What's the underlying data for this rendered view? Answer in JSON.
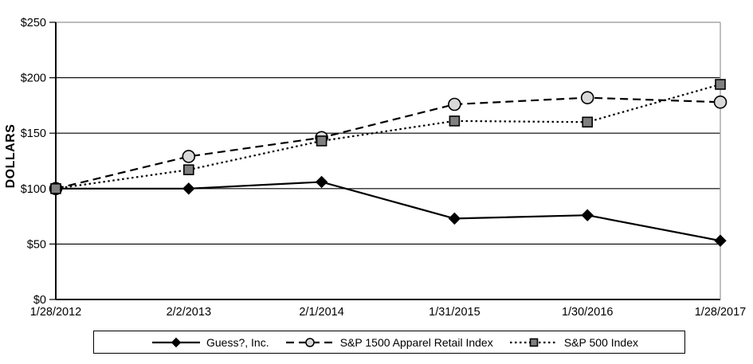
{
  "chart_data": {
    "type": "line",
    "title": "",
    "xlabel": "",
    "ylabel": "DOLLARS",
    "categories": [
      "1/28/2012",
      "2/2/2013",
      "2/1/2014",
      "1/31/2015",
      "1/30/2016",
      "1/28/2017"
    ],
    "ylim": [
      0,
      250
    ],
    "ytick_step": 50,
    "yticklabels": [
      "$0",
      "$50",
      "$100",
      "$150",
      "$200",
      "$250"
    ],
    "grid": "horizontal",
    "legend_position": "bottom",
    "series": [
      {
        "name": "Guess?, Inc.",
        "values": [
          100,
          100,
          106,
          73,
          76,
          53
        ],
        "line_style": "solid",
        "line_color": "#000000",
        "marker": "diamond",
        "marker_fill": "#000000",
        "marker_stroke": "#000000"
      },
      {
        "name": "S&P 1500 Apparel Retail Index",
        "values": [
          100,
          129,
          146,
          176,
          182,
          178
        ],
        "line_style": "dashed",
        "line_color": "#000000",
        "marker": "circle",
        "marker_fill": "#d9d9d9",
        "marker_stroke": "#000000"
      },
      {
        "name": "S&P 500 Index",
        "values": [
          100,
          117,
          143,
          161,
          160,
          194
        ],
        "line_style": "dotted",
        "line_color": "#000000",
        "marker": "square",
        "marker_fill": "#7f7f7f",
        "marker_stroke": "#000000"
      }
    ],
    "colors": {
      "background": "#ffffff",
      "plot_border": "#a6a6a6",
      "gridline": "#000000",
      "axis": "#000000",
      "text": "#000000"
    }
  }
}
